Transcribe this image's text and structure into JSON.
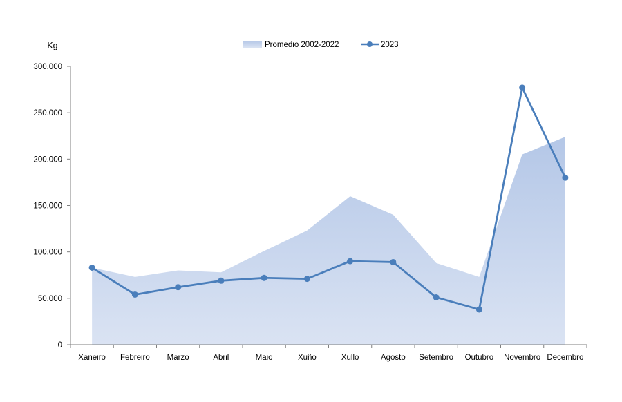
{
  "chart_data": {
    "type": "line",
    "ylabel": "Kg",
    "categories": [
      "Xaneiro",
      "Febreiro",
      "Marzo",
      "Abril",
      "Maio",
      "Xuño",
      "Xullo",
      "Agosto",
      "Setembro",
      "Outubro",
      "Novembro",
      "Decembro"
    ],
    "ylim": [
      0,
      300000
    ],
    "y_ticks": [
      "0",
      "50.000",
      "100.000",
      "150.000",
      "200.000",
      "250.000",
      "300.000"
    ],
    "legend_position": "top-center",
    "grid": false,
    "series": [
      {
        "name": "Promedio 2002-2022",
        "kind": "area",
        "values": [
          83000,
          73000,
          80000,
          78000,
          101000,
          123000,
          160000,
          140000,
          88000,
          73000,
          205000,
          224000
        ]
      },
      {
        "name": "2023",
        "kind": "line-markers",
        "values": [
          83000,
          54000,
          62000,
          69000,
          72000,
          71000,
          90000,
          89000,
          51000,
          38000,
          277000,
          180000
        ]
      }
    ]
  },
  "colors": {
    "area_top": "#b4c7e7",
    "area_bottom": "#dae3f3",
    "line": "#4a7ebb",
    "axis": "#7f7f7f"
  }
}
